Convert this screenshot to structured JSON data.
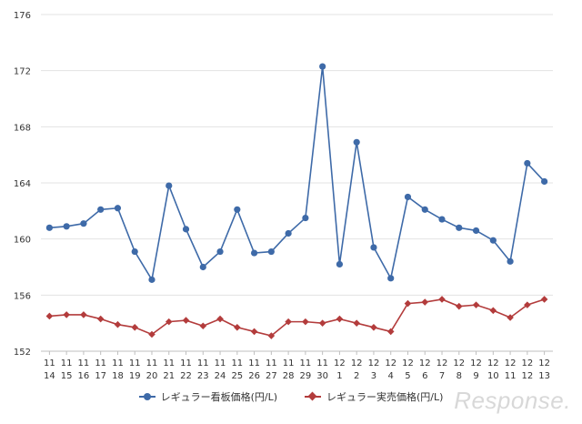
{
  "chart_data": {
    "type": "line",
    "title": "",
    "xlabel": "",
    "ylabel": "",
    "ylim": [
      152,
      176
    ],
    "yticks": [
      152,
      156,
      160,
      164,
      168,
      172,
      176
    ],
    "grid": "horizontal",
    "legend_position": "bottom",
    "categories": [
      [
        "11",
        "14"
      ],
      [
        "11",
        "15"
      ],
      [
        "11",
        "16"
      ],
      [
        "11",
        "17"
      ],
      [
        "11",
        "18"
      ],
      [
        "11",
        "19"
      ],
      [
        "11",
        "20"
      ],
      [
        "11",
        "21"
      ],
      [
        "11",
        "22"
      ],
      [
        "11",
        "23"
      ],
      [
        "11",
        "24"
      ],
      [
        "11",
        "25"
      ],
      [
        "11",
        "26"
      ],
      [
        "11",
        "27"
      ],
      [
        "11",
        "28"
      ],
      [
        "11",
        "29"
      ],
      [
        "11",
        "30"
      ],
      [
        "12",
        "1"
      ],
      [
        "12",
        "2"
      ],
      [
        "12",
        "3"
      ],
      [
        "12",
        "4"
      ],
      [
        "12",
        "5"
      ],
      [
        "12",
        "6"
      ],
      [
        "12",
        "7"
      ],
      [
        "12",
        "8"
      ],
      [
        "12",
        "9"
      ],
      [
        "12",
        "10"
      ],
      [
        "12",
        "11"
      ],
      [
        "12",
        "12"
      ],
      [
        "12",
        "13"
      ]
    ],
    "series": [
      {
        "name": "レギュラー看板価格(円/L)",
        "color": "#3e6aa8",
        "marker": "circle",
        "values": [
          160.8,
          160.9,
          161.1,
          162.1,
          162.2,
          159.1,
          157.1,
          163.8,
          160.7,
          158.0,
          159.1,
          162.1,
          159.0,
          159.1,
          160.4,
          161.5,
          172.3,
          158.2,
          166.9,
          159.4,
          157.2,
          163.0,
          162.1,
          161.4,
          160.8,
          160.6,
          159.9,
          158.4,
          165.4,
          164.1
        ]
      },
      {
        "name": "レギュラー実売価格(円/L)",
        "color": "#b33c3c",
        "marker": "diamond",
        "values": [
          154.5,
          154.6,
          154.6,
          154.3,
          153.9,
          153.7,
          153.2,
          154.1,
          154.2,
          153.8,
          154.3,
          153.7,
          153.4,
          153.1,
          154.1,
          154.1,
          154.0,
          154.3,
          154.0,
          153.7,
          153.4,
          155.4,
          155.5,
          155.7,
          155.2,
          155.3,
          154.9,
          154.4,
          155.3,
          155.7
        ]
      }
    ]
  },
  "watermark": "Response."
}
